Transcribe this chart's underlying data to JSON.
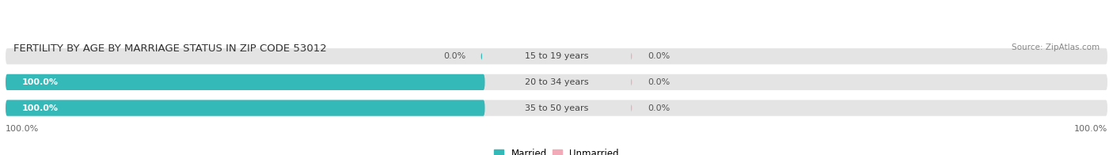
{
  "title": "FERTILITY BY AGE BY MARRIAGE STATUS IN ZIP CODE 53012",
  "source": "Source: ZipAtlas.com",
  "categories": [
    "15 to 19 years",
    "20 to 34 years",
    "35 to 50 years"
  ],
  "married_values": [
    0.0,
    100.0,
    100.0
  ],
  "unmarried_values": [
    0.0,
    0.0,
    0.0
  ],
  "married_color": "#35b8b8",
  "unmarried_color": "#f2aab8",
  "bar_bg_color": "#e4e4e4",
  "bar_height": 0.62,
  "title_fontsize": 9.5,
  "label_fontsize": 8,
  "tick_fontsize": 8,
  "legend_fontsize": 8.5,
  "figsize": [
    14.06,
    1.96
  ],
  "dpi": 100
}
